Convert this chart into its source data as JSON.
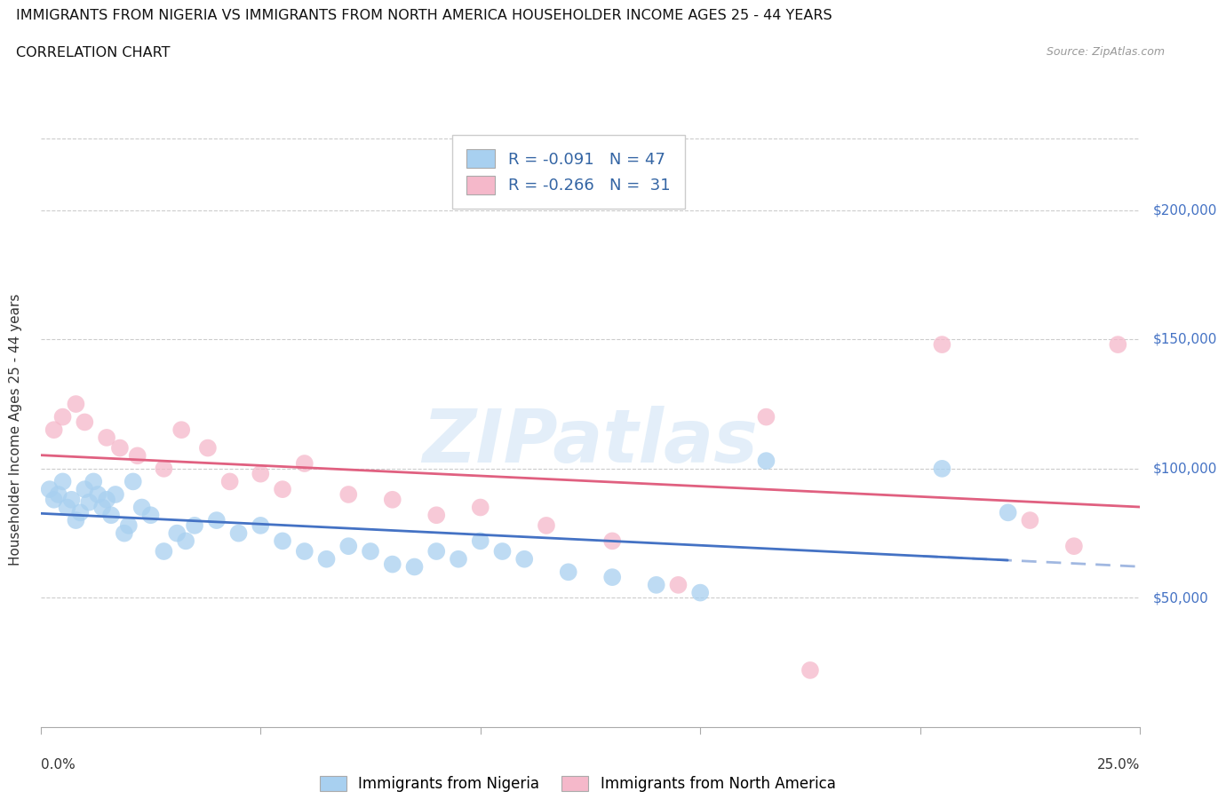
{
  "title": "IMMIGRANTS FROM NIGERIA VS IMMIGRANTS FROM NORTH AMERICA HOUSEHOLDER INCOME AGES 25 - 44 YEARS",
  "subtitle": "CORRELATION CHART",
  "source": "Source: ZipAtlas.com",
  "ylabel": "Householder Income Ages 25 - 44 years",
  "xlim": [
    0.0,
    25.0
  ],
  "ylim": [
    0,
    230000
  ],
  "yticks": [
    50000,
    100000,
    150000,
    200000
  ],
  "ytick_labels": [
    "$50,000",
    "$100,000",
    "$150,000",
    "$200,000"
  ],
  "nigeria_color": "#a8d0f0",
  "nigeria_edge": "#6699cc",
  "north_america_color": "#f5b8ca",
  "north_america_edge": "#dd7799",
  "line_nigeria_color": "#4472c4",
  "line_north_america_color": "#e06080",
  "nigeria_x": [
    0.2,
    0.3,
    0.4,
    0.5,
    0.6,
    0.7,
    0.8,
    0.9,
    1.0,
    1.1,
    1.2,
    1.3,
    1.4,
    1.5,
    1.6,
    1.7,
    1.9,
    2.0,
    2.1,
    2.3,
    2.5,
    2.8,
    3.1,
    3.3,
    3.5,
    4.0,
    4.5,
    5.0,
    5.5,
    6.0,
    6.5,
    7.0,
    7.5,
    8.0,
    8.5,
    9.0,
    9.5,
    10.0,
    10.5,
    11.0,
    12.0,
    13.0,
    14.0,
    15.0,
    16.5,
    20.5,
    22.0
  ],
  "nigeria_y": [
    92000,
    88000,
    90000,
    95000,
    85000,
    88000,
    80000,
    83000,
    92000,
    87000,
    95000,
    90000,
    85000,
    88000,
    82000,
    90000,
    75000,
    78000,
    95000,
    85000,
    82000,
    68000,
    75000,
    72000,
    78000,
    80000,
    75000,
    78000,
    72000,
    68000,
    65000,
    70000,
    68000,
    63000,
    62000,
    68000,
    65000,
    72000,
    68000,
    65000,
    60000,
    58000,
    55000,
    52000,
    103000,
    100000,
    83000
  ],
  "north_america_x": [
    0.3,
    0.5,
    0.8,
    1.0,
    1.5,
    1.8,
    2.2,
    2.8,
    3.2,
    3.8,
    4.3,
    5.0,
    5.5,
    6.0,
    7.0,
    8.0,
    9.0,
    10.0,
    11.5,
    13.0,
    14.5,
    16.5,
    17.5,
    20.5,
    22.5,
    23.5,
    24.5
  ],
  "north_america_y": [
    115000,
    120000,
    125000,
    118000,
    112000,
    108000,
    105000,
    100000,
    115000,
    108000,
    95000,
    98000,
    92000,
    102000,
    90000,
    88000,
    82000,
    85000,
    78000,
    72000,
    55000,
    120000,
    22000,
    148000,
    80000,
    70000,
    148000
  ],
  "watermark_text": "ZIPatlas",
  "bottom_legend_labels": [
    "Immigrants from Nigeria",
    "Immigrants from North America"
  ]
}
